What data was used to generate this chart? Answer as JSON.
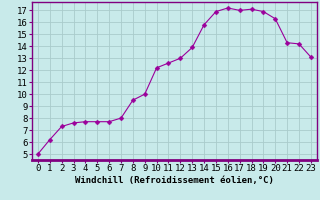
{
  "x": [
    0,
    1,
    2,
    3,
    4,
    5,
    6,
    7,
    8,
    9,
    10,
    11,
    12,
    13,
    14,
    15,
    16,
    17,
    18,
    19,
    20,
    21,
    22,
    23
  ],
  "y": [
    5.0,
    6.2,
    7.3,
    7.6,
    7.7,
    7.7,
    7.7,
    8.0,
    9.5,
    10.0,
    12.2,
    12.6,
    13.0,
    13.9,
    15.8,
    16.9,
    17.2,
    17.0,
    17.1,
    16.9,
    16.3,
    14.3,
    14.2,
    13.1
  ],
  "line_color": "#9b009b",
  "marker_color": "#9b009b",
  "bg_color": "#c8eaea",
  "grid_color": "#aacccc",
  "xlabel": "Windchill (Refroidissement éolien,°C)",
  "ylim": [
    4.5,
    17.7
  ],
  "xlim": [
    -0.5,
    23.5
  ],
  "yticks": [
    5,
    6,
    7,
    8,
    9,
    10,
    11,
    12,
    13,
    14,
    15,
    16,
    17
  ],
  "xticks": [
    0,
    1,
    2,
    3,
    4,
    5,
    6,
    7,
    8,
    9,
    10,
    11,
    12,
    13,
    14,
    15,
    16,
    17,
    18,
    19,
    20,
    21,
    22,
    23
  ],
  "spine_color": "#800080",
  "xlabel_fontsize": 6.5,
  "tick_fontsize": 6.5,
  "marker_size": 2.5,
  "linewidth": 0.8
}
